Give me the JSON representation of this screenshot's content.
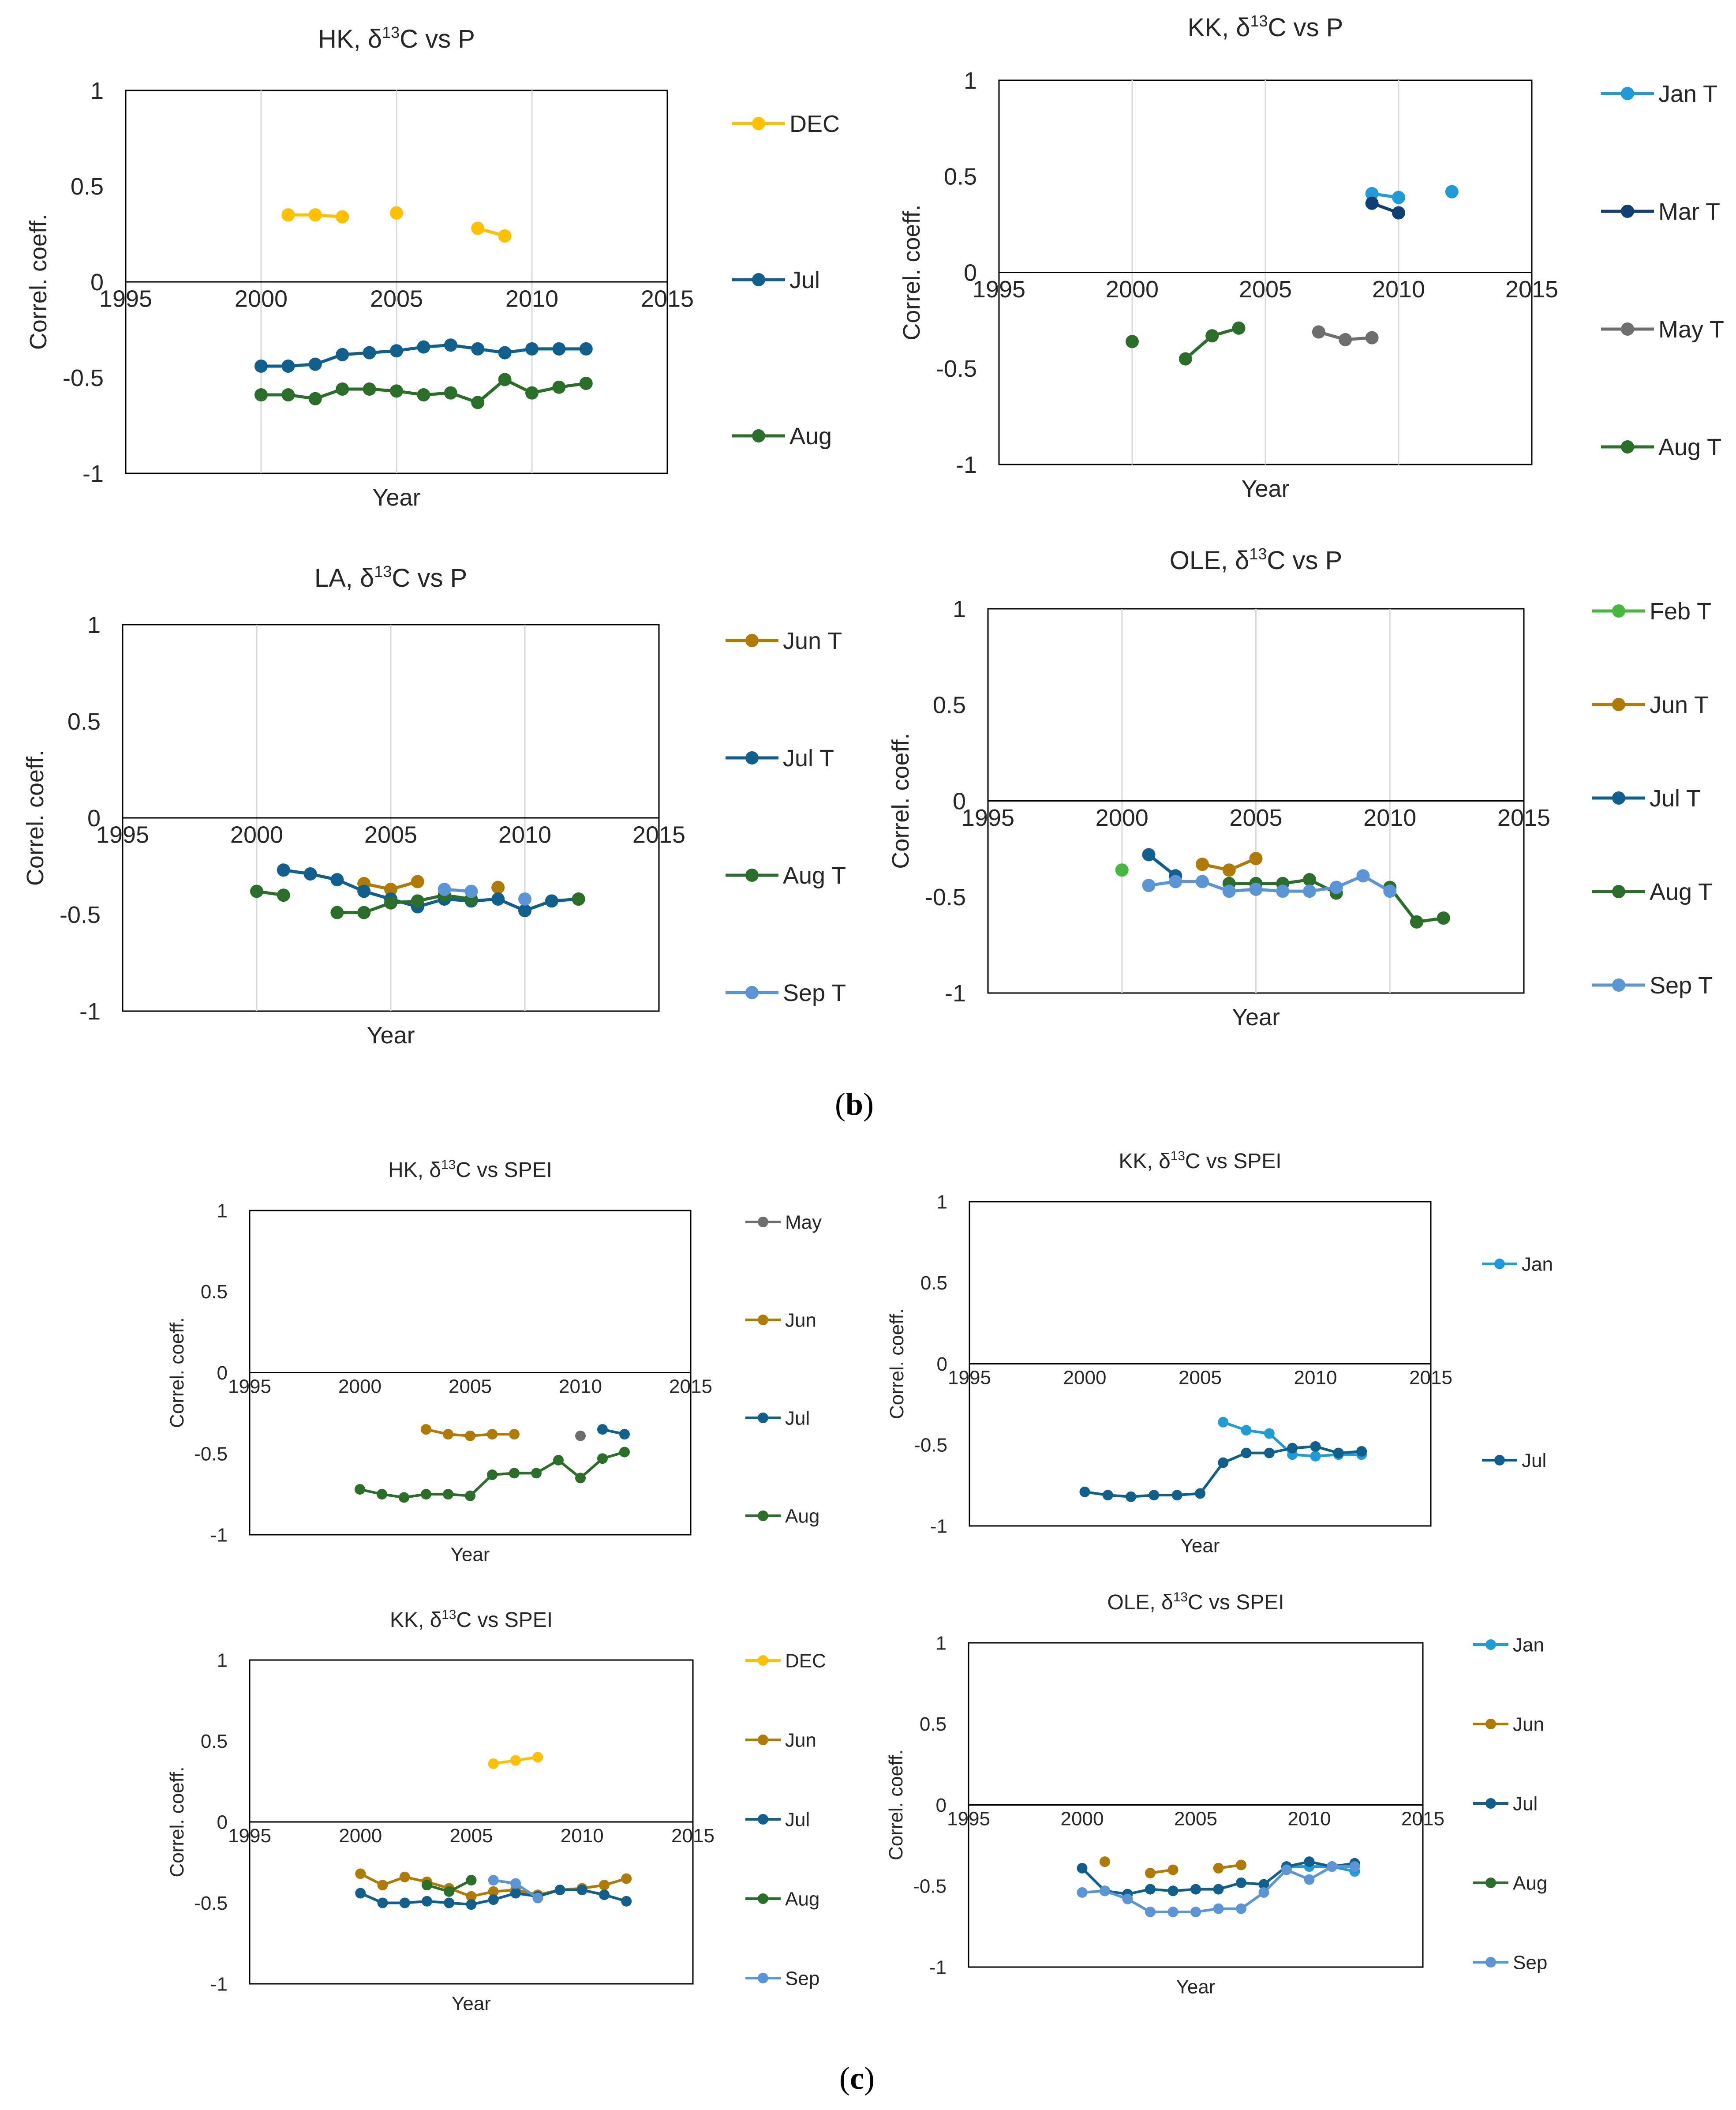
{
  "panel_labels": {
    "b": {
      "open": "(",
      "letter": "b",
      "close": ")"
    },
    "c": {
      "open": "(",
      "letter": "c",
      "close": ")"
    }
  },
  "colors": {
    "DEC": "#FFC000",
    "Jan": "#1F9BD7",
    "Feb": "#47B83D",
    "Mar": "#103F73",
    "May": "#6E6E6E",
    "Jun": "#B07A06",
    "Jul": "#105F8C",
    "Aug": "#2A6E2A",
    "Sep": "#5B95D6",
    "axis": "#000000",
    "grid": "#D9D9D9"
  },
  "chart_data": [
    {
      "type": "line",
      "id": "hk-p",
      "title": {
        "pre": "HK, δ",
        "sup": "13",
        "post": "C vs P"
      },
      "xlabel": "Year",
      "ylabel": "Correl. coeff.",
      "xlim": [
        1995,
        2015
      ],
      "ylim": [
        -1,
        1
      ],
      "xticks": [
        "1995",
        "2000",
        "2005",
        "2010",
        "2015"
      ],
      "yticks": [
        "1",
        "0.5",
        "0",
        "-0.5",
        "-1"
      ],
      "grid": "vertical",
      "series": [
        {
          "name": "DEC",
          "color": "#FFC000",
          "x": [
            2001,
            2002,
            2003,
            2005,
            2008,
            2009
          ],
          "values": [
            0.35,
            0.35,
            0.34,
            0.36,
            0.28,
            0.24
          ],
          "breaks": [
            3,
            4
          ]
        },
        {
          "name": "Jul",
          "color": "#105F8C",
          "x": [
            2000,
            2001,
            2002,
            2003,
            2004,
            2005,
            2006,
            2007,
            2008,
            2009,
            2010,
            2011,
            2012
          ],
          "values": [
            -0.44,
            -0.44,
            -0.43,
            -0.38,
            -0.37,
            -0.36,
            -0.34,
            -0.33,
            -0.35,
            -0.37,
            -0.35,
            -0.35,
            -0.35
          ]
        },
        {
          "name": "Aug",
          "color": "#2A6E2A",
          "x": [
            2000,
            2001,
            2002,
            2003,
            2004,
            2005,
            2006,
            2007,
            2008,
            2009,
            2010,
            2011,
            2012
          ],
          "values": [
            -0.59,
            -0.59,
            -0.61,
            -0.56,
            -0.56,
            -0.57,
            -0.59,
            -0.58,
            -0.63,
            -0.51,
            -0.58,
            -0.55,
            -0.53
          ]
        }
      ]
    },
    {
      "type": "line",
      "id": "kk-p",
      "title": {
        "pre": "KK, δ",
        "sup": "13",
        "post": "C vs P"
      },
      "xlabel": "Year",
      "ylabel": "Correl. coeff.",
      "xlim": [
        1995,
        2015
      ],
      "ylim": [
        -1,
        1
      ],
      "xticks": [
        "1995",
        "2000",
        "2005",
        "2010",
        "2015"
      ],
      "yticks": [
        "1",
        "0.5",
        "0",
        "-0.5",
        "-1"
      ],
      "grid": "vertical",
      "series": [
        {
          "name": "Jan T",
          "color": "#1F9BD7",
          "x": [
            2009,
            2010,
            2012
          ],
          "values": [
            0.41,
            0.39,
            0.42
          ],
          "breaks": [
            2
          ]
        },
        {
          "name": "Mar T",
          "color": "#103F73",
          "x": [
            2009,
            2010
          ],
          "values": [
            0.36,
            0.31
          ]
        },
        {
          "name": "May T",
          "color": "#6E6E6E",
          "x": [
            2007,
            2008,
            2009
          ],
          "values": [
            -0.31,
            -0.35,
            -0.34
          ]
        },
        {
          "name": "Aug T",
          "color": "#2A6E2A",
          "x": [
            2000,
            2002,
            2003,
            2004
          ],
          "values": [
            -0.36,
            -0.45,
            -0.33,
            -0.29
          ],
          "breaks": [
            1
          ]
        }
      ]
    },
    {
      "type": "line",
      "id": "la-p",
      "title": {
        "pre": "LA, δ",
        "sup": "13",
        "post": "C vs P"
      },
      "xlabel": "Year",
      "ylabel": "Correl. coeff.",
      "xlim": [
        1995,
        2015
      ],
      "ylim": [
        -1,
        1
      ],
      "xticks": [
        "1995",
        "2000",
        "2005",
        "2010",
        "2015"
      ],
      "yticks": [
        "1",
        "0.5",
        "0",
        "-0.5",
        "-1"
      ],
      "grid": "vertical",
      "series": [
        {
          "name": "Jun T",
          "color": "#B07A06",
          "x": [
            2004,
            2005,
            2006,
            2009
          ],
          "values": [
            -0.34,
            -0.37,
            -0.33,
            -0.36
          ],
          "breaks": [
            3
          ]
        },
        {
          "name": "Jul T",
          "color": "#105F8C",
          "x": [
            2001,
            2002,
            2003,
            2004,
            2005,
            2006,
            2007,
            2008,
            2009,
            2010,
            2011,
            2012
          ],
          "values": [
            -0.27,
            -0.29,
            -0.32,
            -0.38,
            -0.42,
            -0.46,
            -0.42,
            -0.43,
            -0.42,
            -0.48,
            -0.43,
            -0.42
          ]
        },
        {
          "name": "Aug T",
          "color": "#2A6E2A",
          "x": [
            2000,
            2001,
            2003,
            2004,
            2005,
            2006,
            2007,
            2008,
            2012
          ],
          "values": [
            -0.38,
            -0.4,
            -0.49,
            -0.49,
            -0.44,
            -0.43,
            -0.4,
            -0.42,
            -0.42
          ],
          "breaks": [
            2,
            8
          ]
        },
        {
          "name": "Sep T",
          "color": "#5B95D6",
          "x": [
            2007,
            2008,
            2010
          ],
          "values": [
            -0.37,
            -0.38,
            -0.42
          ],
          "breaks": [
            2
          ]
        }
      ]
    },
    {
      "type": "line",
      "id": "ole-p",
      "title": {
        "pre": "OLE, δ",
        "sup": "13",
        "post": "C vs P"
      },
      "xlabel": "Year",
      "ylabel": "Correl. coeff.",
      "xlim": [
        1995,
        2015
      ],
      "ylim": [
        -1,
        1
      ],
      "xticks": [
        "1995",
        "2000",
        "2005",
        "2010",
        "2015"
      ],
      "yticks": [
        "1",
        "0.5",
        "0",
        "-0.5",
        "-1"
      ],
      "grid": "vertical",
      "series": [
        {
          "name": "Feb T",
          "color": "#47B83D",
          "x": [
            2000
          ],
          "values": [
            -0.36
          ]
        },
        {
          "name": "Jun T",
          "color": "#B07A06",
          "x": [
            2003,
            2004,
            2005
          ],
          "values": [
            -0.33,
            -0.36,
            -0.3
          ]
        },
        {
          "name": "Jul T",
          "color": "#105F8C",
          "x": [
            2001,
            2002
          ],
          "values": [
            -0.28,
            -0.39
          ]
        },
        {
          "name": "Aug T",
          "color": "#2A6E2A",
          "x": [
            2004,
            2005,
            2006,
            2007,
            2008,
            2010,
            2011,
            2012
          ],
          "values": [
            -0.43,
            -0.43,
            -0.43,
            -0.41,
            -0.48,
            -0.45,
            -0.63,
            -0.61
          ],
          "breaks": [
            5
          ]
        },
        {
          "name": "Sep T",
          "color": "#5B95D6",
          "x": [
            2001,
            2002,
            2003,
            2004,
            2005,
            2006,
            2007,
            2008,
            2009,
            2010
          ],
          "values": [
            -0.44,
            -0.42,
            -0.42,
            -0.47,
            -0.46,
            -0.47,
            -0.47,
            -0.45,
            -0.39,
            -0.47
          ]
        }
      ]
    },
    {
      "type": "line",
      "id": "hk-spei",
      "title": {
        "pre": "HK, δ",
        "sup": "13",
        "post": "C vs SPEI"
      },
      "xlabel": "Year",
      "ylabel": "Correl. coeff.",
      "xlim": [
        1995,
        2015
      ],
      "ylim": [
        -1,
        1
      ],
      "xticks": [
        "1995",
        "2000",
        "2005",
        "2010",
        "2015"
      ],
      "yticks": [
        "1",
        "0.5",
        "0",
        "-0.5",
        "-1"
      ],
      "grid": "none",
      "series": [
        {
          "name": "May",
          "color": "#6E6E6E",
          "x": [
            2010
          ],
          "values": [
            -0.39
          ]
        },
        {
          "name": "Jun",
          "color": "#B07A06",
          "x": [
            2003,
            2004,
            2005,
            2006,
            2007
          ],
          "values": [
            -0.35,
            -0.38,
            -0.39,
            -0.38,
            -0.38
          ]
        },
        {
          "name": "Jul",
          "color": "#105F8C",
          "x": [
            2011,
            2012
          ],
          "values": [
            -0.35,
            -0.38
          ]
        },
        {
          "name": "Aug",
          "color": "#2A6E2A",
          "x": [
            2000,
            2001,
            2002,
            2003,
            2004,
            2005,
            2006,
            2007,
            2008,
            2009,
            2010,
            2011,
            2012
          ],
          "values": [
            -0.72,
            -0.75,
            -0.77,
            -0.75,
            -0.75,
            -0.76,
            -0.63,
            -0.62,
            -0.62,
            -0.54,
            -0.65,
            -0.53,
            -0.49
          ]
        }
      ]
    },
    {
      "type": "line",
      "id": "kk-spei-1",
      "title": {
        "pre": "KK, δ",
        "sup": "13",
        "post": "C vs SPEI"
      },
      "xlabel": "Year",
      "ylabel": "Correl. coeff.",
      "xlim": [
        1995,
        2015
      ],
      "ylim": [
        -1,
        1
      ],
      "xticks": [
        "1995",
        "2000",
        "2005",
        "2010",
        "2015"
      ],
      "yticks": [
        "1",
        "0.5",
        "0",
        "-0.5",
        "-1"
      ],
      "grid": "none",
      "series": [
        {
          "name": "Jan",
          "color": "#1F9BD7",
          "x": [
            2006,
            2007,
            2008,
            2009,
            2010,
            2011,
            2012
          ],
          "values": [
            -0.36,
            -0.41,
            -0.43,
            -0.56,
            -0.57,
            -0.56,
            -0.56
          ]
        },
        {
          "name": "Jul",
          "color": "#105F8C",
          "x": [
            2000,
            2001,
            2002,
            2003,
            2004,
            2005,
            2006,
            2007,
            2008,
            2009,
            2010,
            2011,
            2012
          ],
          "values": [
            -0.79,
            -0.81,
            -0.82,
            -0.81,
            -0.81,
            -0.8,
            -0.61,
            -0.55,
            -0.55,
            -0.52,
            -0.51,
            -0.55,
            -0.54
          ]
        }
      ]
    },
    {
      "type": "line",
      "id": "kk-spei-2",
      "title": {
        "pre": "KK, δ",
        "sup": "13",
        "post": "C vs SPEI"
      },
      "xlabel": "Year",
      "ylabel": "Correl. coeff.",
      "xlim": [
        1995,
        2015
      ],
      "ylim": [
        -1,
        1
      ],
      "xticks": [
        "1995",
        "2000",
        "2005",
        "2010",
        "2015"
      ],
      "yticks": [
        "1",
        "0.5",
        "0",
        "-0.5",
        "-1"
      ],
      "grid": "none",
      "series": [
        {
          "name": "DEC",
          "color": "#FFC000",
          "x": [
            2006,
            2007,
            2008
          ],
          "values": [
            0.36,
            0.38,
            0.4
          ]
        },
        {
          "name": "Jun",
          "color": "#B07A06",
          "x": [
            2000,
            2001,
            2002,
            2003,
            2004,
            2005,
            2006,
            2007,
            2008,
            2009,
            2010,
            2011,
            2012
          ],
          "values": [
            -0.32,
            -0.39,
            -0.34,
            -0.37,
            -0.41,
            -0.46,
            -0.43,
            -0.42,
            -0.45,
            -0.42,
            -0.41,
            -0.39,
            -0.35
          ]
        },
        {
          "name": "Jul",
          "color": "#105F8C",
          "x": [
            2000,
            2001,
            2002,
            2003,
            2004,
            2005,
            2006,
            2007,
            2008,
            2009,
            2010,
            2011,
            2012
          ],
          "values": [
            -0.44,
            -0.5,
            -0.5,
            -0.49,
            -0.5,
            -0.51,
            -0.48,
            -0.44,
            -0.46,
            -0.42,
            -0.42,
            -0.45,
            -0.49
          ]
        },
        {
          "name": "Aug",
          "color": "#2A6E2A",
          "x": [
            2003,
            2004,
            2005
          ],
          "values": [
            -0.39,
            -0.43,
            -0.36
          ]
        },
        {
          "name": "Sep",
          "color": "#5B95D6",
          "x": [
            2006,
            2007,
            2008
          ],
          "values": [
            -0.36,
            -0.38,
            -0.47
          ]
        }
      ]
    },
    {
      "type": "line",
      "id": "ole-spei",
      "title": {
        "pre": "OLE, δ",
        "sup": "13",
        "post": "C vs SPEI"
      },
      "xlabel": "Year",
      "ylabel": "Correl. coeff.",
      "xlim": [
        1995,
        2015
      ],
      "ylim": [
        -1,
        1
      ],
      "xticks": [
        "1995",
        "2000",
        "2005",
        "2010",
        "2015"
      ],
      "yticks": [
        "1",
        "0.5",
        "0",
        "-0.5",
        "-1"
      ],
      "grid": "none",
      "series": [
        {
          "name": "Jan",
          "color": "#1F9BD7",
          "x": [
            2009,
            2010,
            2011,
            2012
          ],
          "values": [
            -0.38,
            -0.38,
            -0.38,
            -0.41
          ]
        },
        {
          "name": "Jun",
          "color": "#B07A06",
          "x": [
            2001,
            2003,
            2004,
            2006,
            2007
          ],
          "values": [
            -0.35,
            -0.42,
            -0.4,
            -0.39,
            -0.37
          ],
          "breaks": [
            1,
            3
          ]
        },
        {
          "name": "Jul",
          "color": "#105F8C",
          "x": [
            2000,
            2001,
            2002,
            2003,
            2004,
            2005,
            2006,
            2007,
            2008,
            2009,
            2010,
            2011,
            2012
          ],
          "values": [
            -0.39,
            -0.53,
            -0.55,
            -0.52,
            -0.53,
            -0.52,
            -0.52,
            -0.48,
            -0.49,
            -0.38,
            -0.35,
            -0.38,
            -0.36
          ]
        },
        {
          "name": "Aug",
          "color": "#2A6E2A",
          "x": [],
          "values": []
        },
        {
          "name": "Sep",
          "color": "#5B95D6",
          "x": [
            2000,
            2001,
            2002,
            2003,
            2004,
            2005,
            2006,
            2007,
            2008,
            2009,
            2010,
            2011,
            2012
          ],
          "values": [
            -0.54,
            -0.53,
            -0.58,
            -0.66,
            -0.66,
            -0.66,
            -0.64,
            -0.64,
            -0.54,
            -0.4,
            -0.46,
            -0.38,
            -0.38
          ]
        }
      ]
    }
  ]
}
